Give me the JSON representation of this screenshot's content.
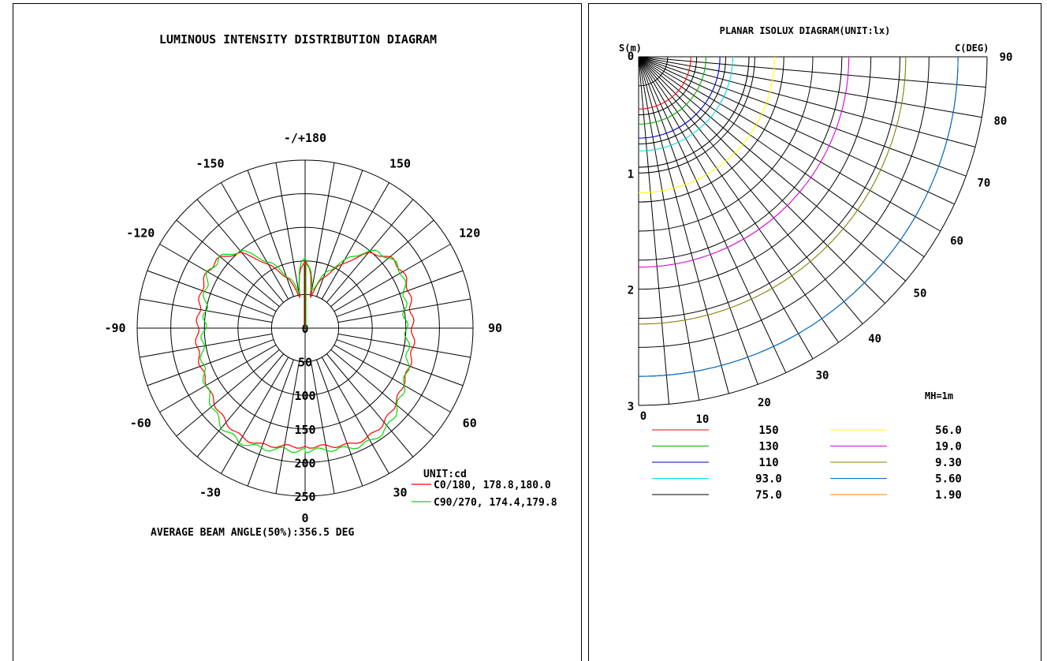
{
  "chart_data": [
    {
      "type": "polar",
      "title": "LUMINOUS INTENSITY DISTRIBUTION DIAGRAM",
      "unit_label": "UNIT:cd",
      "footer": "AVERAGE BEAM ANGLE(50%):356.5 DEG",
      "angle_labels": [
        {
          "deg": 180,
          "text": "-/+180"
        },
        {
          "deg": 150,
          "text": "150"
        },
        {
          "deg": -150,
          "text": "-150"
        },
        {
          "deg": 120,
          "text": "120"
        },
        {
          "deg": -120,
          "text": "-120"
        },
        {
          "deg": 90,
          "text": "90"
        },
        {
          "deg": -90,
          "text": "-90"
        },
        {
          "deg": 60,
          "text": "60"
        },
        {
          "deg": -60,
          "text": "-60"
        },
        {
          "deg": 30,
          "text": "30"
        },
        {
          "deg": -30,
          "text": "-30"
        },
        {
          "deg": 0,
          "text": "0"
        }
      ],
      "radial_ticks": [
        "0",
        "50",
        "100",
        "150",
        "200",
        "250"
      ],
      "radial_values": [
        0,
        50,
        100,
        150,
        200,
        250
      ],
      "rlim": [
        0,
        250
      ],
      "series": [
        {
          "name": "C0/180, 178.8,180.0",
          "color": "#ff0000",
          "angles": [
            0,
            10,
            20,
            30,
            40,
            50,
            60,
            70,
            80,
            90,
            100,
            110,
            120,
            130,
            140,
            150,
            160,
            170,
            175,
            180
          ],
          "values": [
            176,
            178,
            185,
            188,
            183,
            175,
            168,
            165,
            163,
            160,
            160,
            164,
            168,
            164,
            145,
            108,
            80,
            48,
            85,
            102
          ]
        },
        {
          "name": "C90/270, 174.4,179.8",
          "color": "#00dd00",
          "angles": [
            0,
            10,
            20,
            30,
            40,
            50,
            60,
            70,
            80,
            90,
            100,
            110,
            120,
            130,
            140,
            150,
            160,
            170,
            175,
            180
          ],
          "values": [
            182,
            183,
            190,
            195,
            192,
            180,
            170,
            162,
            155,
            150,
            150,
            158,
            166,
            164,
            150,
            115,
            85,
            55,
            90,
            105
          ]
        }
      ]
    },
    {
      "type": "polar-isolux",
      "title": "PLANAR ISOLUX DIAGRAM(UNIT:lx)",
      "s_axis_label": "S(m)",
      "c_axis_label": "C(DEG)",
      "mh_label": "MH=1m",
      "s_ticks": [
        "0",
        "1",
        "2",
        "3"
      ],
      "s_values": [
        0,
        1,
        2,
        3
      ],
      "c_ticks": [
        "0",
        "10",
        "20",
        "30",
        "40",
        "50",
        "60",
        "70",
        "80",
        "90"
      ],
      "c_values": [
        0,
        10,
        20,
        30,
        40,
        50,
        60,
        70,
        80,
        90
      ],
      "slim": [
        0,
        3
      ],
      "contours": [
        {
          "label": "150",
          "color": "#ff0000",
          "radius_m": 0.45
        },
        {
          "label": "130",
          "color": "#00b000",
          "radius_m": 0.58
        },
        {
          "label": "110",
          "color": "#0000cc",
          "radius_m": 0.7
        },
        {
          "label": "93.0",
          "color": "#00dddd",
          "radius_m": 0.81
        },
        {
          "label": "75.0",
          "color": "#000000",
          "radius_m": 0.95
        },
        {
          "label": "56.0",
          "color": "#ffff00",
          "radius_m": 1.17
        },
        {
          "label": "19.0",
          "color": "#dd00dd",
          "radius_m": 1.81
        },
        {
          "label": "9.30",
          "color": "#808000",
          "radius_m": 2.3
        },
        {
          "label": "5.60",
          "color": "#0070d0",
          "radius_m": 2.75
        },
        {
          "label": "1.90",
          "color": "#ff8000",
          "radius_m": null
        }
      ]
    }
  ]
}
